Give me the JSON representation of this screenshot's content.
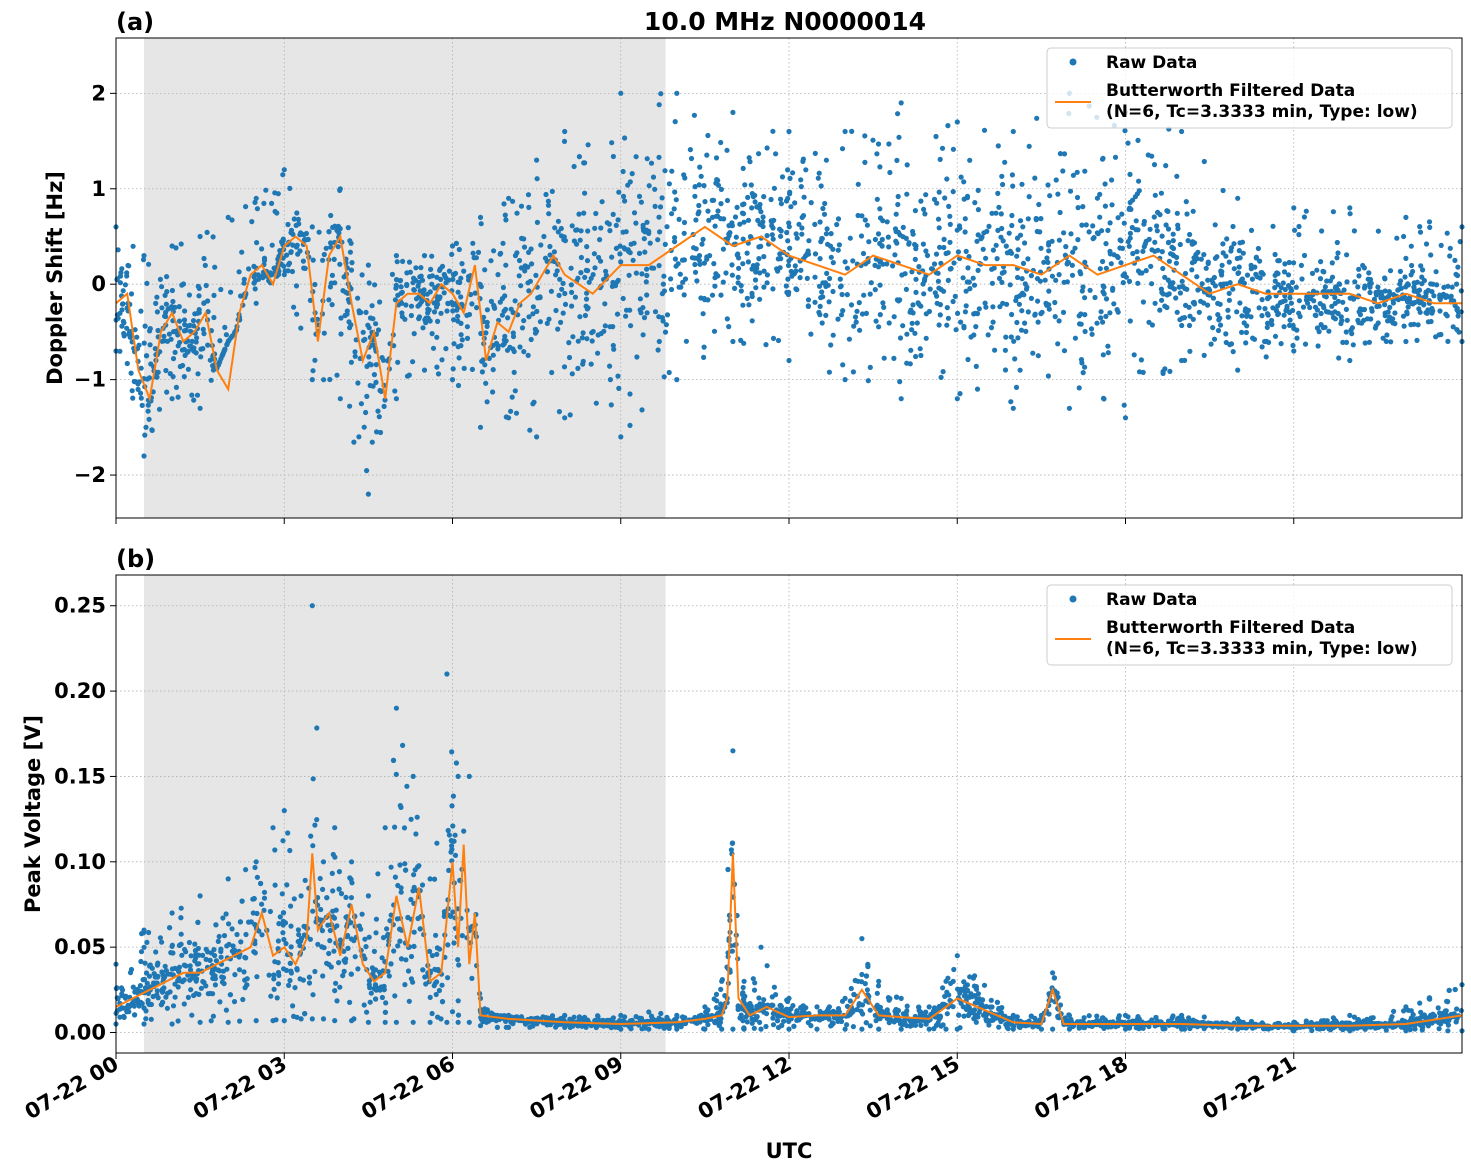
{
  "title": "10.0 MHz N0000014",
  "xlabel": "UTC",
  "x_tick_labels": [
    "07-22 00",
    "07-22 03",
    "07-22 06",
    "07-22 09",
    "07-22 12",
    "07-22 15",
    "07-22 18",
    "07-22 21"
  ],
  "colors": {
    "raw": "#1f77b4",
    "filtered": "#ff7f0e",
    "shade": "#e6e6e6",
    "grid": "#b0b0b0"
  },
  "chart_data": [
    {
      "type": "scatter",
      "panel_label": "(a)",
      "ylabel": "Doppler Shift [Hz]",
      "x_unit": "hours since 07-22 00:00 UTC",
      "xlim": [
        0,
        24
      ],
      "ylim": [
        -2.45,
        2.58
      ],
      "y_ticks": [
        -2,
        -1,
        0,
        1,
        2
      ],
      "y_tick_labels": [
        "−2",
        "−1",
        "0",
        "1",
        "2"
      ],
      "grid": true,
      "legend_position": "top-right",
      "shaded_interval": [
        0.5,
        9.8
      ],
      "legend": [
        "Raw Data",
        "Butterworth Filtered Data",
        "(N=6, Tc=3.3333 min, Type: low)"
      ],
      "series": [
        {
          "name": "Raw Data",
          "envelope": {
            "x": [
              0,
              0.5,
              1,
              1.5,
              2,
              2.5,
              3,
              3.5,
              4,
              4.5,
              5,
              5.5,
              6,
              6.5,
              7,
              7.5,
              8,
              9,
              10,
              11,
              12,
              13,
              14,
              15,
              16,
              17,
              18,
              19,
              20,
              21,
              22,
              23,
              24
            ],
            "upper": [
              0.6,
              0.3,
              0.4,
              0.5,
              0.7,
              0.9,
              1.2,
              0.6,
              1.0,
              0.2,
              0.3,
              0.3,
              0.4,
              0.7,
              0.9,
              1.3,
              1.6,
              2.0,
              2.0,
              1.8,
              1.6,
              1.6,
              1.9,
              1.7,
              1.6,
              2.0,
              1.8,
              1.6,
              0.9,
              0.8,
              0.8,
              0.7,
              0.6
            ],
            "lower": [
              -0.7,
              -1.8,
              -1.2,
              -1.3,
              -0.6,
              -0.2,
              0.1,
              -1.0,
              -1.2,
              -2.2,
              -1.2,
              -0.9,
              -1.0,
              -1.5,
              -1.4,
              -1.6,
              -1.4,
              -1.6,
              -1.0,
              -0.6,
              -0.8,
              -1.0,
              -1.2,
              -1.2,
              -1.3,
              -1.3,
              -1.4,
              -0.8,
              -0.9,
              -0.7,
              -0.8,
              -0.6,
              -0.6
            ]
          }
        },
        {
          "name": "Butterworth Filtered Data",
          "x": [
            0,
            0.2,
            0.4,
            0.6,
            0.8,
            1.0,
            1.2,
            1.4,
            1.6,
            1.8,
            2.0,
            2.2,
            2.4,
            2.6,
            2.8,
            3.0,
            3.2,
            3.4,
            3.6,
            3.8,
            4.0,
            4.2,
            4.4,
            4.6,
            4.8,
            5.0,
            5.2,
            5.4,
            5.6,
            5.8,
            6.0,
            6.2,
            6.4,
            6.6,
            6.8,
            7.0,
            7.2,
            7.4,
            7.6,
            7.8,
            8.0,
            8.5,
            9.0,
            9.5,
            10.0,
            10.5,
            11.0,
            11.5,
            12.0,
            12.5,
            13.0,
            13.5,
            14.0,
            14.5,
            15.0,
            15.5,
            16.0,
            16.5,
            17.0,
            17.5,
            18.0,
            18.5,
            19.0,
            19.5,
            20.0,
            20.5,
            21.0,
            21.5,
            22.0,
            22.5,
            23.0,
            23.5,
            24.0
          ],
          "y": [
            -0.2,
            -0.1,
            -0.9,
            -1.2,
            -0.5,
            -0.3,
            -0.6,
            -0.5,
            -0.3,
            -0.9,
            -1.1,
            -0.3,
            0.1,
            0.2,
            0.0,
            0.4,
            0.5,
            0.4,
            -0.6,
            0.3,
            0.5,
            -0.2,
            -0.8,
            -0.5,
            -1.2,
            -0.2,
            -0.1,
            -0.1,
            -0.2,
            0.0,
            -0.1,
            -0.3,
            0.2,
            -0.8,
            -0.4,
            -0.5,
            -0.2,
            -0.1,
            0.1,
            0.3,
            0.1,
            -0.1,
            0.2,
            0.2,
            0.4,
            0.6,
            0.4,
            0.5,
            0.3,
            0.2,
            0.1,
            0.3,
            0.2,
            0.1,
            0.3,
            0.2,
            0.2,
            0.1,
            0.3,
            0.1,
            0.2,
            0.3,
            0.1,
            -0.1,
            0.0,
            -0.1,
            -0.1,
            -0.1,
            -0.1,
            -0.2,
            -0.1,
            -0.2,
            -0.2
          ]
        }
      ]
    },
    {
      "type": "scatter",
      "panel_label": "(b)",
      "ylabel": "Peak Voltage [V]",
      "x_unit": "hours since 07-22 00:00 UTC",
      "xlim": [
        0,
        24
      ],
      "ylim": [
        -0.012,
        0.268
      ],
      "y_ticks": [
        0,
        0.05,
        0.1,
        0.15,
        0.2,
        0.25
      ],
      "y_tick_labels": [
        "0.00",
        "0.05",
        "0.10",
        "0.15",
        "0.20",
        "0.25"
      ],
      "grid": true,
      "legend_position": "top-right",
      "shaded_interval": [
        0.5,
        9.8
      ],
      "legend": [
        "Raw Data",
        "Butterworth Filtered Data",
        "(N=6, Tc=3.3333 min, Type: low)"
      ],
      "series": [
        {
          "name": "Raw Data",
          "envelope": {
            "x": [
              0,
              0.5,
              1,
              1.5,
              2,
              2.5,
              2.8,
              3.0,
              3.3,
              3.5,
              3.7,
              3.9,
              4.2,
              4.5,
              4.8,
              5.0,
              5.3,
              5.6,
              5.9,
              6.1,
              6.3,
              6.5,
              6.8,
              7,
              8,
              9,
              9.5,
              10,
              10.5,
              10.8,
              11.0,
              11.2,
              11.5,
              12,
              12.5,
              13.0,
              13.3,
              13.6,
              14,
              14.5,
              14.8,
              15,
              16,
              16.5,
              16.7,
              17,
              18,
              19,
              20,
              21,
              22,
              23,
              24
            ],
            "upper": [
              0.04,
              0.06,
              0.07,
              0.08,
              0.09,
              0.1,
              0.12,
              0.13,
              0.08,
              0.25,
              0.1,
              0.12,
              0.1,
              0.08,
              0.12,
              0.19,
              0.15,
              0.09,
              0.21,
              0.15,
              0.15,
              0.02,
              0.01,
              0.01,
              0.01,
              0.01,
              0.012,
              0.01,
              0.015,
              0.03,
              0.165,
              0.03,
              0.05,
              0.02,
              0.015,
              0.02,
              0.055,
              0.03,
              0.02,
              0.015,
              0.03,
              0.045,
              0.01,
              0.01,
              0.035,
              0.01,
              0.01,
              0.01,
              0.008,
              0.006,
              0.01,
              0.015,
              0.028
            ],
            "lower": [
              0.005,
              0.005,
              0.005,
              0.006,
              0.006,
              0.007,
              0.007,
              0.007,
              0.008,
              0.008,
              0.008,
              0.007,
              0.007,
              0.006,
              0.006,
              0.006,
              0.006,
              0.006,
              0.006,
              0.006,
              0.006,
              0.004,
              0.003,
              0.003,
              0.003,
              0.002,
              0.002,
              0.002,
              0.002,
              0.002,
              0.002,
              0.002,
              0.002,
              0.002,
              0.002,
              0.002,
              0.002,
              0.002,
              0.002,
              0.002,
              0.002,
              0.002,
              0.002,
              0.002,
              0.002,
              0.002,
              0.002,
              0.002,
              0.002,
              0.001,
              0.001,
              0.001,
              0.001
            ]
          }
        },
        {
          "name": "Butterworth Filtered Data",
          "x": [
            0,
            0.3,
            0.6,
            0.9,
            1.2,
            1.5,
            1.8,
            2.1,
            2.4,
            2.6,
            2.8,
            3.0,
            3.2,
            3.4,
            3.5,
            3.6,
            3.8,
            4.0,
            4.2,
            4.4,
            4.6,
            4.8,
            5.0,
            5.2,
            5.4,
            5.6,
            5.8,
            6.0,
            6.1,
            6.2,
            6.3,
            6.4,
            6.5,
            7,
            8,
            9,
            10,
            10.5,
            10.8,
            10.9,
            11.0,
            11.1,
            11.3,
            11.6,
            12,
            12.5,
            13.0,
            13.3,
            13.6,
            14,
            14.5,
            14.8,
            15,
            16,
            16.5,
            16.7,
            16.9,
            18,
            19,
            20,
            21,
            22,
            23,
            24
          ],
          "y": [
            0.015,
            0.02,
            0.025,
            0.03,
            0.035,
            0.035,
            0.04,
            0.045,
            0.05,
            0.07,
            0.045,
            0.05,
            0.04,
            0.055,
            0.105,
            0.06,
            0.07,
            0.045,
            0.075,
            0.04,
            0.03,
            0.035,
            0.08,
            0.05,
            0.085,
            0.03,
            0.035,
            0.1,
            0.05,
            0.11,
            0.04,
            0.07,
            0.01,
            0.008,
            0.006,
            0.005,
            0.006,
            0.008,
            0.01,
            0.02,
            0.105,
            0.02,
            0.01,
            0.015,
            0.009,
            0.01,
            0.01,
            0.025,
            0.01,
            0.009,
            0.008,
            0.015,
            0.02,
            0.006,
            0.005,
            0.025,
            0.005,
            0.005,
            0.005,
            0.004,
            0.004,
            0.004,
            0.005,
            0.01
          ]
        }
      ]
    }
  ]
}
